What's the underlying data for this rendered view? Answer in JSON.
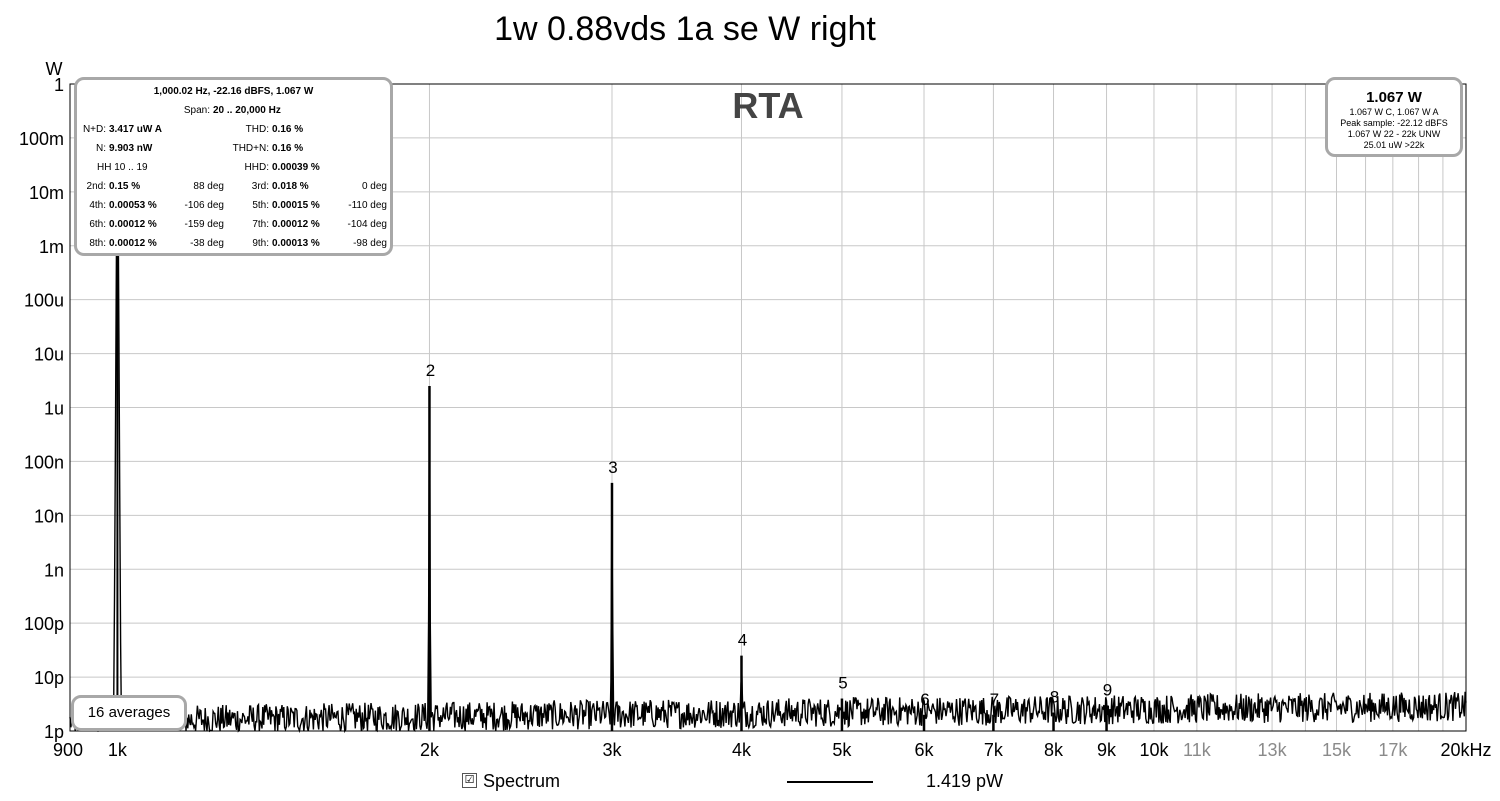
{
  "chart_data": {
    "type": "line",
    "title": "1w 0.88vds 1a se W right",
    "overlay_title": "RTA",
    "ylabel": "W",
    "xlabel": "",
    "x_scale": "log",
    "y_scale": "log",
    "xlim_hz": [
      900,
      20000
    ],
    "ylim_w": [
      1e-12,
      1
    ],
    "x_ticks": [
      {
        "value": 900,
        "label": "900",
        "major": true
      },
      {
        "value": 1000,
        "label": "1k",
        "major": true
      },
      {
        "value": 2000,
        "label": "2k",
        "major": true
      },
      {
        "value": 3000,
        "label": "3k",
        "major": true
      },
      {
        "value": 4000,
        "label": "4k",
        "major": true
      },
      {
        "value": 5000,
        "label": "5k",
        "major": true
      },
      {
        "value": 6000,
        "label": "6k",
        "major": true
      },
      {
        "value": 7000,
        "label": "7k",
        "major": true
      },
      {
        "value": 8000,
        "label": "8k",
        "major": true
      },
      {
        "value": 9000,
        "label": "9k",
        "major": true
      },
      {
        "value": 10000,
        "label": "10k",
        "major": true
      },
      {
        "value": 11000,
        "label": "11k",
        "major": false
      },
      {
        "value": 13000,
        "label": "13k",
        "major": false
      },
      {
        "value": 15000,
        "label": "15k",
        "major": false
      },
      {
        "value": 17000,
        "label": "17k",
        "major": false
      },
      {
        "value": 20000,
        "label": "20kHz",
        "major": true
      }
    ],
    "y_ticks": [
      {
        "value": 1,
        "label": "1"
      },
      {
        "value": 0.1,
        "label": "100m"
      },
      {
        "value": 0.01,
        "label": "10m"
      },
      {
        "value": 0.001,
        "label": "1m"
      },
      {
        "value": 0.0001,
        "label": "100u"
      },
      {
        "value": 1e-05,
        "label": "10u"
      },
      {
        "value": 1e-06,
        "label": "1u"
      },
      {
        "value": 1e-07,
        "label": "100n"
      },
      {
        "value": 1e-08,
        "label": "10n"
      },
      {
        "value": 1e-09,
        "label": "1n"
      },
      {
        "value": 1e-10,
        "label": "100p"
      },
      {
        "value": 1e-11,
        "label": "10p"
      },
      {
        "value": 1e-12,
        "label": "1p"
      }
    ],
    "grid": true,
    "noise_floor_w": 1.5e-12,
    "harmonics": [
      {
        "label": "",
        "freq_hz": 1000,
        "power_w": 1.067
      },
      {
        "label": "2",
        "freq_hz": 2000,
        "power_w": 2.5e-06
      },
      {
        "label": "3",
        "freq_hz": 3000,
        "power_w": 4e-08
      },
      {
        "label": "4",
        "freq_hz": 4000,
        "power_w": 2.5e-11
      },
      {
        "label": "5",
        "freq_hz": 5000,
        "power_w": 4e-12
      },
      {
        "label": "6",
        "freq_hz": 6000,
        "power_w": 2e-12
      },
      {
        "label": "7",
        "freq_hz": 7000,
        "power_w": 2e-12
      },
      {
        "label": "8",
        "freq_hz": 8000,
        "power_w": 2.2e-12
      },
      {
        "label": "9",
        "freq_hz": 9000,
        "power_w": 3e-12
      }
    ],
    "series": [
      {
        "name": "Spectrum",
        "value_label": "1.419 pW",
        "color": "#000000"
      }
    ],
    "legend_placement": "bottom"
  },
  "stats": {
    "header": "1,000.02 Hz, -22.16 dBFS, 1.067 W",
    "span_label": "Span:",
    "span_value": "20 .. 20,000 Hz",
    "nd_label": "N+D:",
    "nd_value": "3.417 uW A",
    "thd_label": "THD:",
    "thd_value": "0.16 %",
    "n_label": "N:",
    "n_value": "9.903 nW",
    "thdn_label": "THD+N:",
    "thdn_value": "0.16 %",
    "hh_label": "HH 10 .. 19",
    "hhd_label": "HHD:",
    "hhd_value": "0.00039 %",
    "harm_rows": [
      {
        "l1": "2nd:",
        "v1": "0.15 %",
        "p1": "88 deg",
        "l2": "3rd:",
        "v2": "0.018 %",
        "p2": "0 deg"
      },
      {
        "l1": "4th:",
        "v1": "0.00053 %",
        "p1": "-106 deg",
        "l2": "5th:",
        "v2": "0.00015 %",
        "p2": "-110 deg"
      },
      {
        "l1": "6th:",
        "v1": "0.00012 %",
        "p1": "-159 deg",
        "l2": "7th:",
        "v2": "0.00012 %",
        "p2": "-104 deg"
      },
      {
        "l1": "8th:",
        "v1": "0.00012 %",
        "p1": "-38 deg",
        "l2": "9th:",
        "v2": "0.00013 %",
        "p2": "-98 deg"
      }
    ]
  },
  "level_box": {
    "big": "1.067 W",
    "line1": "1.067 W C, 1.067 W A",
    "line2": "Peak sample: -22.12 dBFS",
    "line3": "1.067 W 22 - 22k UNW",
    "line4": "25.01 uW >22k"
  },
  "averages": "16 averages",
  "legend": {
    "checkbox": "☑",
    "label": "Spectrum",
    "value": "1.419 pW"
  }
}
